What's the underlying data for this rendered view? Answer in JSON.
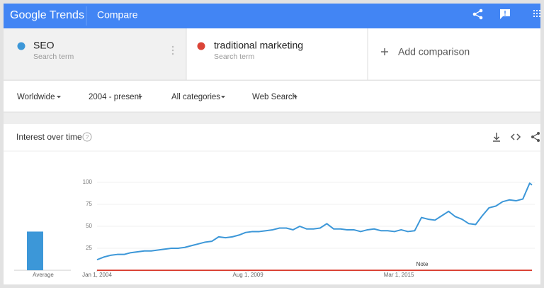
{
  "header": {
    "logo": "Google Trends",
    "title": "Compare"
  },
  "term_subtitles": [
    "Search term",
    "Search term"
  ],
  "add_comparison": "Add comparison",
  "filters": [
    "Worldwide",
    "2004 - present",
    "All categories",
    "Web Search"
  ],
  "chart_data": {
    "type": "line",
    "title": "Interest over time",
    "x": [
      "2004-01-01",
      "2004-04-01",
      "2004-07-01",
      "2004-10-01",
      "2005-01-01",
      "2005-04-01",
      "2005-07-01",
      "2005-10-01",
      "2006-01-01",
      "2006-04-01",
      "2006-07-01",
      "2006-10-01",
      "2007-01-01",
      "2007-04-01",
      "2007-07-01",
      "2007-10-01",
      "2008-01-01",
      "2008-04-01",
      "2008-07-01",
      "2008-10-01",
      "2009-01-01",
      "2009-04-01",
      "2009-07-01",
      "2009-10-01",
      "2010-01-01",
      "2010-04-01",
      "2010-07-01",
      "2010-10-01",
      "2011-01-01",
      "2011-04-01",
      "2011-07-01",
      "2011-10-01",
      "2012-01-01",
      "2012-04-01",
      "2012-07-01",
      "2012-10-01",
      "2013-01-01",
      "2013-04-01",
      "2013-07-01",
      "2013-10-01",
      "2014-01-01",
      "2014-04-01",
      "2014-07-01",
      "2014-10-01",
      "2015-01-01",
      "2015-04-01",
      "2015-07-01",
      "2015-10-01",
      "2016-01-01",
      "2016-04-01",
      "2016-07-01",
      "2016-10-01",
      "2017-01-01",
      "2017-04-01",
      "2017-07-01",
      "2017-10-01",
      "2018-01-01",
      "2018-04-01",
      "2018-07-01",
      "2018-10-01",
      "2019-01-01",
      "2019-04-01",
      "2019-07-01",
      "2019-10-01",
      "2020-01-01",
      "2020-02-01"
    ],
    "series": [
      {
        "name": "SEO",
        "color": "#3c97d8",
        "average": 44,
        "values": [
          12,
          15,
          17,
          18,
          18,
          20,
          21,
          22,
          22,
          23,
          24,
          25,
          25,
          26,
          28,
          30,
          32,
          33,
          38,
          37,
          38,
          40,
          43,
          44,
          44,
          45,
          46,
          48,
          48,
          46,
          50,
          47,
          47,
          48,
          53,
          47,
          47,
          46,
          46,
          44,
          46,
          47,
          45,
          45,
          44,
          46,
          44,
          45,
          60,
          58,
          57,
          62,
          67,
          61,
          58,
          53,
          52,
          62,
          71,
          73,
          78,
          80,
          79,
          81,
          99,
          97
        ]
      },
      {
        "name": "traditional marketing",
        "color": "#db4437",
        "average": 0,
        "values": [
          0,
          0,
          0,
          0,
          0,
          0,
          0,
          0,
          0,
          0,
          0,
          0,
          0,
          0,
          0,
          0,
          0,
          0,
          0,
          0,
          0,
          0,
          0,
          0,
          0,
          0,
          0,
          0,
          0,
          0,
          0,
          0,
          0,
          0,
          0,
          0,
          0,
          0,
          0,
          0,
          0,
          0,
          0,
          0,
          0,
          0,
          0,
          0,
          0,
          0,
          0,
          0,
          0,
          0,
          0,
          0,
          0,
          0,
          0,
          0,
          0,
          0,
          0,
          0,
          0,
          0
        ]
      }
    ],
    "average_label": "Average",
    "note": "Note",
    "xlim": [
      "2004-01-01",
      "2020-02-01"
    ],
    "xticks": [
      {
        "value": "2004-01-01",
        "label": "Jan 1, 2004"
      },
      {
        "value": "2009-08-01",
        "label": "Aug 1, 2009"
      },
      {
        "value": "2015-03-01",
        "label": "Mar 1, 2015"
      }
    ],
    "ylim": [
      0,
      100
    ],
    "yticks": [
      25,
      50,
      75,
      100
    ],
    "grid": true
  }
}
